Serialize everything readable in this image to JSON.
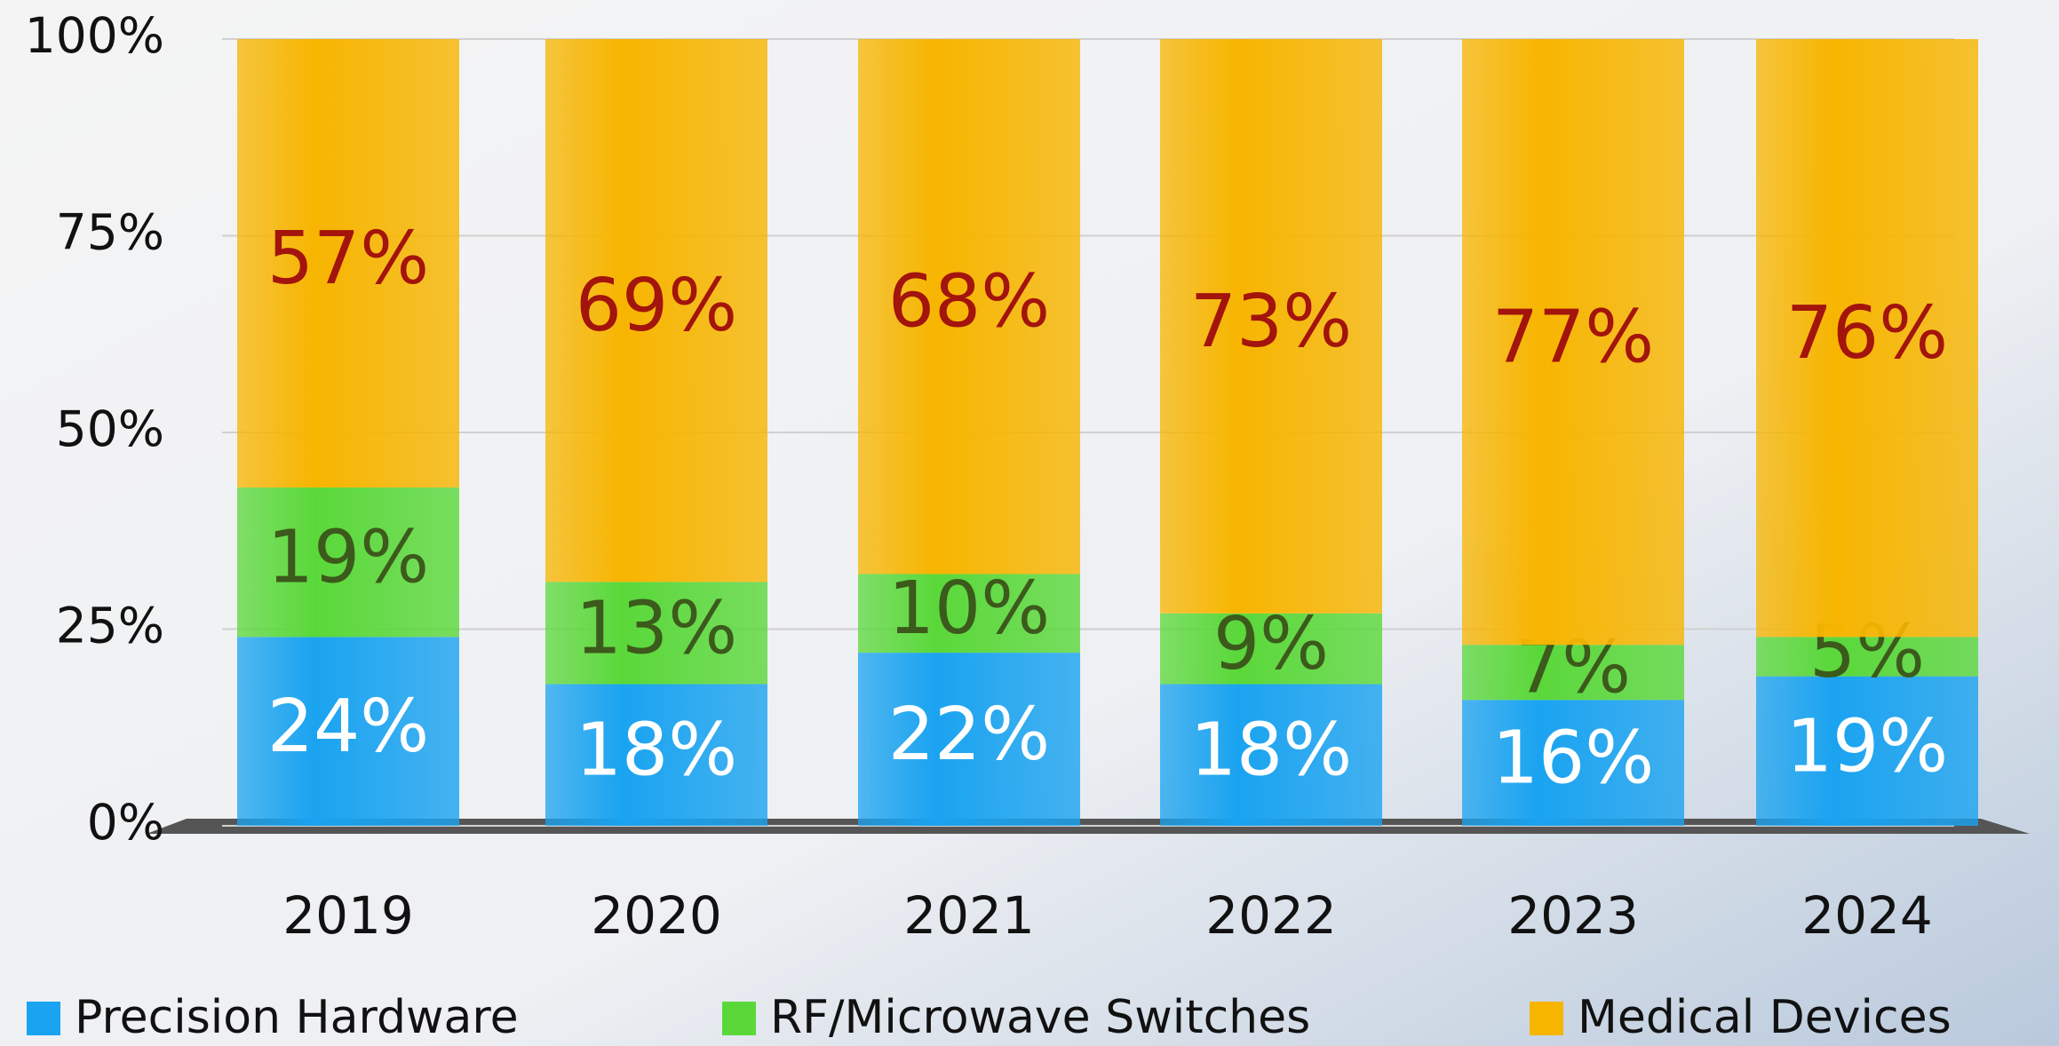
{
  "chart_data": {
    "type": "stacked_bar",
    "categories": [
      "2019",
      "2020",
      "2021",
      "2022",
      "2023",
      "2024"
    ],
    "series": [
      {
        "name": "Precision Hardware",
        "color": "#1aa3f0",
        "values": [
          24,
          18,
          22,
          18,
          16,
          19
        ],
        "value_labels": [
          "24%",
          "18%",
          "22%",
          "18%",
          "16%",
          "19%"
        ]
      },
      {
        "name": "RF/Microwave  Switches",
        "color": "#5ad83a",
        "values": [
          19,
          13,
          10,
          9,
          7,
          5
        ],
        "value_labels": [
          "19%",
          "13%",
          "10%",
          "9%",
          "7%",
          "5%"
        ]
      },
      {
        "name": "Medical Devices",
        "color": "#f7b500",
        "values": [
          57,
          69,
          68,
          73,
          77,
          76
        ],
        "value_labels": [
          "57%",
          "69%",
          "68%",
          "73%",
          "77%",
          "76%"
        ]
      }
    ],
    "ylim": [
      0,
      100
    ],
    "yticks": [
      {
        "value": 0,
        "label": "0%"
      },
      {
        "value": 25,
        "label": "25%"
      },
      {
        "value": 50,
        "label": "50%"
      },
      {
        "value": 75,
        "label": "75%"
      },
      {
        "value": 100,
        "label": "100%"
      }
    ],
    "grid": true
  }
}
